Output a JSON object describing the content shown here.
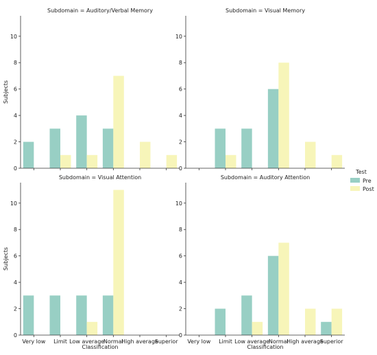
{
  "legend": {
    "title": "Test",
    "placement": "right"
  },
  "colors": {
    "Pre": "#98cfc4",
    "Post": "#f7f5b9",
    "axis": "#333333"
  },
  "chart_data": [
    {
      "type": "bar",
      "title": "Subdomain = Auditory/Verbal Memory",
      "xlabel": "",
      "ylabel": "Subjects",
      "categories": [
        "Very low",
        "Limit",
        "Low average",
        "Normal",
        "High average",
        "Superior"
      ],
      "series": [
        {
          "name": "Pre",
          "values": [
            2,
            3,
            4,
            3,
            0,
            0
          ]
        },
        {
          "name": "Post",
          "values": [
            0,
            1,
            1,
            7,
            2,
            1
          ]
        }
      ],
      "ylim": [
        0,
        11.55
      ],
      "yticks": [
        0,
        2,
        4,
        6,
        8,
        10
      ],
      "show_xticklabels": false,
      "grid": false
    },
    {
      "type": "bar",
      "title": "Subdomain = Visual Memory",
      "xlabel": "",
      "ylabel": "",
      "categories": [
        "Very low",
        "Limit",
        "Low average",
        "Normal",
        "High average",
        "Superior"
      ],
      "series": [
        {
          "name": "Pre",
          "values": [
            0,
            3,
            3,
            6,
            0,
            0
          ]
        },
        {
          "name": "Post",
          "values": [
            0,
            1,
            0,
            8,
            2,
            1
          ]
        }
      ],
      "ylim": [
        0,
        11.55
      ],
      "yticks": [
        0,
        2,
        4,
        6,
        8,
        10
      ],
      "show_xticklabels": false,
      "grid": false
    },
    {
      "type": "bar",
      "title": "Subdomain = Visual Attention",
      "xlabel": "Classification",
      "ylabel": "Subjects",
      "categories": [
        "Very low",
        "Limit",
        "Low average",
        "Normal",
        "High average",
        "Superior"
      ],
      "series": [
        {
          "name": "Pre",
          "values": [
            3,
            3,
            3,
            3,
            0,
            0
          ]
        },
        {
          "name": "Post",
          "values": [
            0,
            0,
            1,
            11,
            0,
            0
          ]
        }
      ],
      "ylim": [
        0,
        11.55
      ],
      "yticks": [
        0,
        2,
        4,
        6,
        8,
        10
      ],
      "show_xticklabels": true,
      "grid": false
    },
    {
      "type": "bar",
      "title": "Subdomain = Auditory Attention",
      "xlabel": "Classification",
      "ylabel": "",
      "categories": [
        "Very low",
        "Limit",
        "Low average",
        "Normal",
        "High average",
        "Superior"
      ],
      "series": [
        {
          "name": "Pre",
          "values": [
            0,
            2,
            3,
            6,
            0,
            1
          ]
        },
        {
          "name": "Post",
          "values": [
            0,
            0,
            1,
            7,
            2,
            2
          ]
        }
      ],
      "ylim": [
        0,
        11.55
      ],
      "yticks": [
        0,
        2,
        4,
        6,
        8,
        10
      ],
      "show_xticklabels": true,
      "grid": false
    }
  ]
}
